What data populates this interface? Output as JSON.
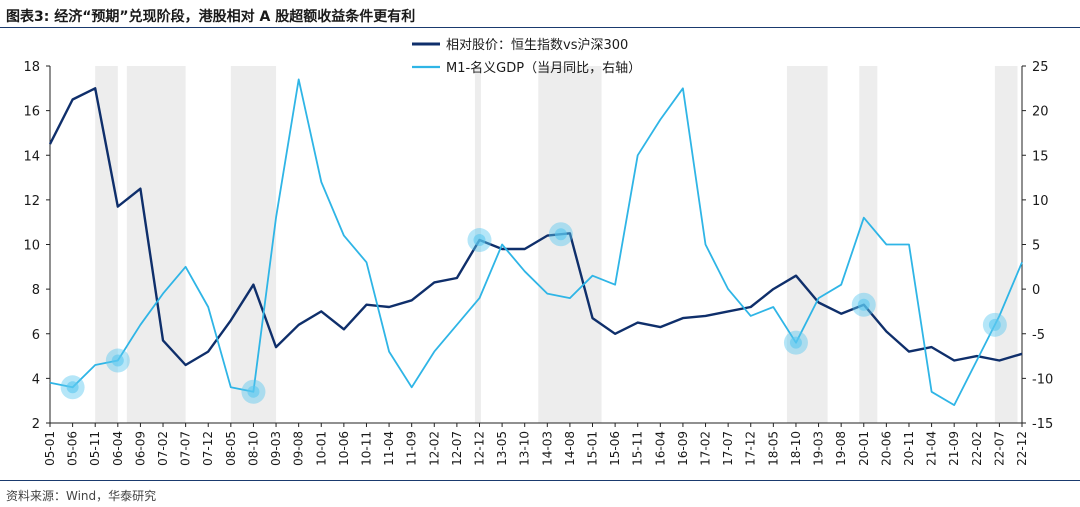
{
  "title": "图表3:  经济“预期”兑现阶段，港股相对 A 股超额收益条件更有利",
  "source": "资料来源：Wind，华泰研究",
  "chart_data": {
    "type": "line",
    "x": [
      "05-01",
      "05-06",
      "05-11",
      "06-04",
      "06-09",
      "07-02",
      "07-07",
      "07-12",
      "08-05",
      "08-10",
      "09-03",
      "09-08",
      "10-01",
      "10-06",
      "10-11",
      "11-04",
      "11-09",
      "12-02",
      "12-07",
      "12-12",
      "13-05",
      "13-10",
      "14-03",
      "14-08",
      "15-01",
      "15-06",
      "15-11",
      "16-04",
      "16-09",
      "17-02",
      "17-07",
      "17-12",
      "18-05",
      "18-10",
      "19-03",
      "19-08",
      "20-01",
      "20-06",
      "20-11",
      "21-04",
      "21-09",
      "22-02",
      "22-07",
      "22-12"
    ],
    "y_left_range": [
      2,
      18
    ],
    "y_left_ticks": [
      "2",
      "4",
      "6",
      "8",
      "10",
      "12",
      "14",
      "16",
      "18"
    ],
    "y_right_range": [
      -15,
      25
    ],
    "y_right_ticks": [
      "-15",
      "-10",
      "-5",
      "0",
      "5",
      "10",
      "15",
      "20",
      "25"
    ],
    "shaded_ranges": [
      [
        "05-11",
        "06-04"
      ],
      [
        "06-06",
        "07-07"
      ],
      [
        "08-05",
        "09-03"
      ],
      [
        "12-11",
        "12-12"
      ],
      [
        "14-01",
        "15-03"
      ],
      [
        "18-08",
        "19-05"
      ],
      [
        "19-12",
        "20-04"
      ],
      [
        "22-06",
        "22-11"
      ]
    ],
    "series": [
      {
        "name": "相对股价：恒生指数vs沪深300",
        "axis": "left",
        "color": "#0f2f6b",
        "values": [
          14.5,
          16.5,
          17,
          11.7,
          12.5,
          5.7,
          4.6,
          5.2,
          6.6,
          8.2,
          5.4,
          6.4,
          7,
          6.2,
          7.3,
          7.2,
          7.5,
          8.3,
          8.5,
          10.2,
          9.8,
          9.8,
          10.4,
          10.5,
          6.7,
          6,
          6.5,
          6.3,
          6.7,
          6.8,
          7,
          7.2,
          8,
          8.6,
          7.4,
          6.9,
          7.3,
          6.1,
          5.2,
          5.4,
          4.8,
          5,
          4.8,
          5.1
        ]
      },
      {
        "name": "M1-名义GDP（当月同比，右轴）",
        "axis": "right",
        "color": "#2fb5e6",
        "values": [
          -10.5,
          -11,
          -8.5,
          -8,
          -4,
          -0.5,
          2.5,
          -2,
          -11,
          -11.5,
          8,
          23.5,
          12,
          6,
          3,
          -7,
          -11,
          -7,
          -4,
          -1,
          5,
          2,
          -0.5,
          -1,
          1.5,
          0.5,
          15,
          19,
          22.5,
          5,
          0,
          -3,
          -2,
          -6,
          -1,
          0.5,
          8,
          5,
          5,
          -11.5,
          -13,
          -8,
          -3,
          3
        ]
      }
    ],
    "highlight_points": [
      [
        "05-06",
        "right"
      ],
      [
        "06-04",
        "right"
      ],
      [
        "08-10",
        "right"
      ],
      [
        "12-12",
        "left"
      ],
      [
        "14-06",
        "left"
      ],
      [
        "18-10",
        "right"
      ],
      [
        "20-01",
        "left"
      ],
      [
        "22-06",
        "right"
      ]
    ],
    "legend_position": "top-center"
  }
}
